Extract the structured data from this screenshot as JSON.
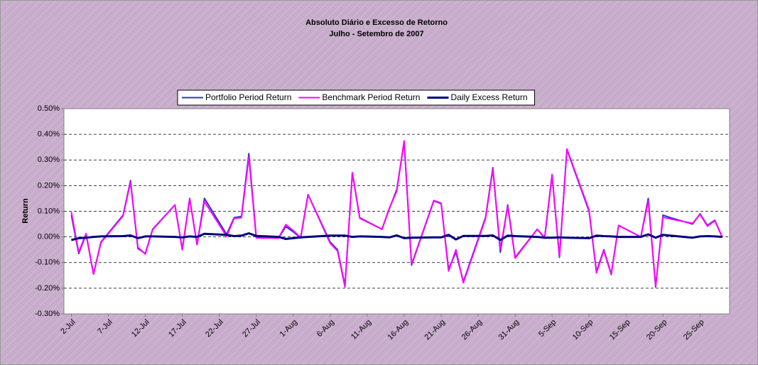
{
  "chart_data": {
    "type": "line",
    "title": "Absoluto Diário e Excesso de Retorno",
    "subtitle": "Julho - Setembro de 2007",
    "y_label": "Return",
    "x": [
      "07-02",
      "07-03",
      "07-04",
      "07-05",
      "07-06",
      "07-09",
      "07-10",
      "07-11",
      "07-12",
      "07-13",
      "07-16",
      "07-17",
      "07-18",
      "07-19",
      "07-20",
      "07-23",
      "07-24",
      "07-25",
      "07-26",
      "07-27",
      "07-30",
      "07-31",
      "08-01",
      "08-02",
      "08-03",
      "08-06",
      "08-07",
      "08-08",
      "08-09",
      "08-10",
      "08-13",
      "08-14",
      "08-15",
      "08-16",
      "08-17",
      "08-20",
      "08-21",
      "08-22",
      "08-23",
      "08-24",
      "08-27",
      "08-28",
      "08-29",
      "08-30",
      "08-31",
      "09-03",
      "09-04",
      "09-05",
      "09-06",
      "09-07",
      "09-10",
      "09-11",
      "09-12",
      "09-13",
      "09-14",
      "09-17",
      "09-18",
      "09-19",
      "09-20",
      "09-21",
      "09-24",
      "09-25",
      "09-26",
      "09-27",
      "09-28"
    ],
    "series": [
      {
        "name": "Portfolio Period Return",
        "color": "#3333cc",
        "values": [
          0.085,
          -0.065,
          0.01,
          -0.145,
          -0.02,
          0.085,
          0.22,
          -0.045,
          -0.065,
          0.03,
          0.125,
          -0.05,
          0.15,
          -0.03,
          0.15,
          0.01,
          0.075,
          0.08,
          0.325,
          0.0,
          -0.005,
          0.04,
          0.02,
          -0.005,
          0.165,
          -0.02,
          -0.05,
          -0.19,
          0.25,
          0.075,
          0.03,
          0.11,
          0.185,
          0.37,
          -0.11,
          0.14,
          0.13,
          -0.125,
          -0.06,
          -0.175,
          0.075,
          0.27,
          -0.06,
          0.125,
          -0.08,
          0.03,
          -0.005,
          0.24,
          -0.08,
          0.34,
          0.1,
          -0.135,
          -0.05,
          -0.145,
          0.045,
          0.0,
          0.15,
          -0.195,
          0.085,
          0.075,
          0.05,
          0.09,
          0.045,
          0.065,
          0.0
        ]
      },
      {
        "name": "Benchmark Period Return",
        "color": "#ff00ff",
        "values": [
          0.097,
          -0.06,
          0.013,
          -0.145,
          -0.022,
          0.082,
          0.214,
          -0.04,
          -0.067,
          0.028,
          0.125,
          -0.048,
          0.148,
          -0.03,
          0.138,
          0.002,
          0.072,
          0.075,
          0.311,
          -0.004,
          -0.005,
          0.048,
          0.025,
          -0.003,
          0.165,
          -0.025,
          -0.055,
          -0.195,
          0.25,
          0.073,
          0.03,
          0.112,
          0.179,
          0.375,
          -0.107,
          0.142,
          0.132,
          -0.133,
          -0.05,
          -0.179,
          0.071,
          0.264,
          -0.048,
          0.12,
          -0.083,
          0.03,
          -0.002,
          0.243,
          -0.078,
          0.343,
          0.105,
          -0.14,
          -0.053,
          -0.147,
          0.045,
          0.0,
          0.14,
          -0.192,
          0.077,
          0.07,
          0.053,
          0.088,
          0.042,
          0.063,
          0.0
        ]
      },
      {
        "name": "Daily Excess Return",
        "color": "#000080",
        "values": [
          -0.012,
          -0.005,
          -0.003,
          0.0,
          0.002,
          0.003,
          0.006,
          -0.005,
          0.002,
          0.002,
          0.0,
          -0.002,
          0.002,
          0.0,
          0.012,
          0.008,
          0.003,
          0.005,
          0.014,
          0.004,
          0.0,
          -0.008,
          -0.005,
          -0.002,
          0.0,
          0.005,
          0.005,
          0.005,
          0.0,
          0.002,
          0.0,
          -0.002,
          0.006,
          -0.005,
          -0.003,
          -0.002,
          -0.002,
          0.008,
          -0.01,
          0.004,
          0.004,
          0.006,
          -0.012,
          0.005,
          0.003,
          0.0,
          -0.003,
          -0.003,
          -0.002,
          -0.003,
          -0.005,
          0.005,
          0.003,
          0.002,
          0.0,
          0.0,
          0.01,
          -0.003,
          0.008,
          0.005,
          -0.003,
          0.002,
          0.003,
          0.002,
          0.0
        ]
      }
    ],
    "xlim": [
      "07-01",
      "09-29"
    ],
    "xticks": [
      {
        "value": "07-02",
        "label": "2-Jul"
      },
      {
        "value": "07-07",
        "label": "7-Jul"
      },
      {
        "value": "07-12",
        "label": "12-Jul"
      },
      {
        "value": "07-17",
        "label": "17-Jul"
      },
      {
        "value": "07-22",
        "label": "22-Jul"
      },
      {
        "value": "07-27",
        "label": "27-Jul"
      },
      {
        "value": "08-01",
        "label": "1-Aug"
      },
      {
        "value": "08-06",
        "label": "6-Aug"
      },
      {
        "value": "08-11",
        "label": "11-Aug"
      },
      {
        "value": "08-16",
        "label": "16-Aug"
      },
      {
        "value": "08-21",
        "label": "21-Aug"
      },
      {
        "value": "08-26",
        "label": "26-Aug"
      },
      {
        "value": "08-31",
        "label": "31-Aug"
      },
      {
        "value": "09-05",
        "label": "5-Sep"
      },
      {
        "value": "09-10",
        "label": "10-Sep"
      },
      {
        "value": "09-15",
        "label": "15-Sep"
      },
      {
        "value": "09-20",
        "label": "20-Sep"
      },
      {
        "value": "09-25",
        "label": "25-Sep"
      }
    ],
    "ylim": [
      -0.3,
      0.5
    ],
    "yticks": [
      {
        "value": -0.3,
        "label": "-0.30%"
      },
      {
        "value": -0.2,
        "label": "-0.20%"
      },
      {
        "value": -0.1,
        "label": "-0.10%"
      },
      {
        "value": 0,
        "label": "0.00%"
      },
      {
        "value": 0.1,
        "label": "0.10%"
      },
      {
        "value": 0.2,
        "label": "0.20%"
      },
      {
        "value": 0.3,
        "label": "0.30%"
      },
      {
        "value": 0.4,
        "label": "0.40%"
      },
      {
        "value": 0.5,
        "label": "0.50%"
      }
    ],
    "grid": true,
    "legend": "top"
  }
}
